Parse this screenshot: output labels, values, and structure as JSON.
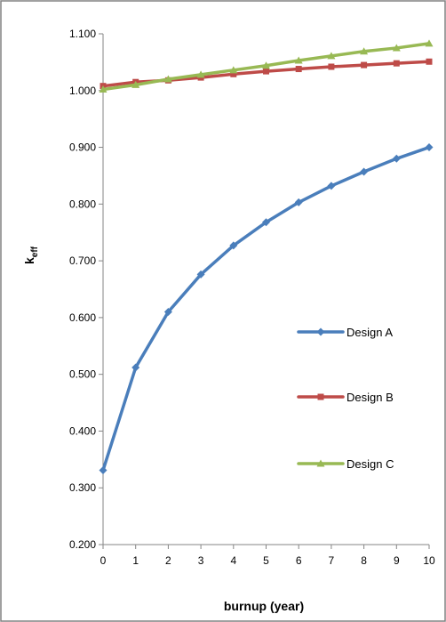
{
  "chart_data": {
    "type": "line",
    "title": "",
    "xlabel": "burnup (year)",
    "ylabel_main": "k",
    "ylabel_sub": "eff",
    "x": [
      0,
      1,
      2,
      3,
      4,
      5,
      6,
      7,
      8,
      9,
      10
    ],
    "x_ticks": [
      "0",
      "1",
      "2",
      "3",
      "4",
      "5",
      "6",
      "7",
      "8",
      "9",
      "10"
    ],
    "ylim": [
      0.2,
      1.1
    ],
    "y_ticks": [
      "0.200",
      "0.300",
      "0.400",
      "0.500",
      "0.600",
      "0.700",
      "0.800",
      "0.900",
      "1.000",
      "1.100"
    ],
    "grid": false,
    "legend_position": "right",
    "series": [
      {
        "name": "Design A",
        "color": "#4a7ebb",
        "marker": "diamond",
        "values": [
          0.331,
          0.512,
          0.61,
          0.676,
          0.727,
          0.768,
          0.803,
          0.832,
          0.857,
          0.88,
          0.9
        ]
      },
      {
        "name": "Design B",
        "color": "#be4b48",
        "marker": "square",
        "values": [
          1.008,
          1.015,
          1.018,
          1.023,
          1.029,
          1.034,
          1.038,
          1.042,
          1.045,
          1.048,
          1.051
        ]
      },
      {
        "name": "Design C",
        "color": "#98b954",
        "marker": "triangle",
        "values": [
          1.002,
          1.01,
          1.02,
          1.028,
          1.036,
          1.044,
          1.053,
          1.061,
          1.069,
          1.075,
          1.083
        ]
      }
    ]
  }
}
